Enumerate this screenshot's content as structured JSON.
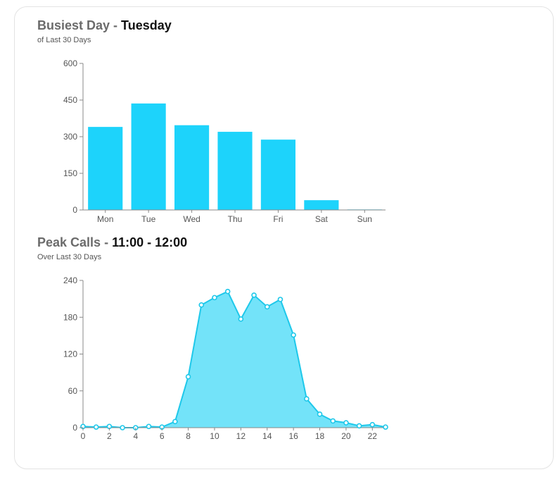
{
  "busiest": {
    "title_prefix": "Busiest Day - ",
    "title_value": "Tuesday",
    "subtitle": "of Last 30 Days"
  },
  "peak": {
    "title_prefix": "Peak Calls - ",
    "title_value": "11:00 - 12:00",
    "subtitle": "Over Last 30 Days"
  },
  "colors": {
    "bar": "#1dd3fb",
    "area_fill": "#73e3f9",
    "line": "#1ec8ea",
    "axis": "#888888",
    "text": "#555555"
  },
  "chart_data": [
    {
      "type": "bar",
      "categories": [
        "Mon",
        "Tue",
        "Wed",
        "Thu",
        "Fri",
        "Sat",
        "Sun"
      ],
      "values": [
        340,
        436,
        347,
        320,
        288,
        40,
        2
      ],
      "yticks": [
        0,
        150,
        300,
        450,
        600
      ],
      "ylim": [
        0,
        600
      ],
      "grid": false
    },
    {
      "type": "area",
      "x": [
        0,
        1,
        2,
        3,
        4,
        5,
        6,
        7,
        8,
        9,
        10,
        11,
        12,
        13,
        14,
        15,
        16,
        17,
        18,
        19,
        20,
        21,
        22,
        23
      ],
      "values": [
        2,
        1,
        2,
        0,
        0,
        2,
        1,
        10,
        83,
        200,
        212,
        222,
        177,
        216,
        197,
        209,
        151,
        47,
        22,
        11,
        8,
        3,
        5,
        1
      ],
      "xticks": [
        0,
        2,
        4,
        6,
        8,
        10,
        12,
        14,
        16,
        18,
        20,
        22
      ],
      "yticks": [
        0,
        60,
        120,
        180,
        240
      ],
      "ylim": [
        0,
        240
      ],
      "xlim": [
        0,
        23
      ],
      "grid": false
    }
  ]
}
